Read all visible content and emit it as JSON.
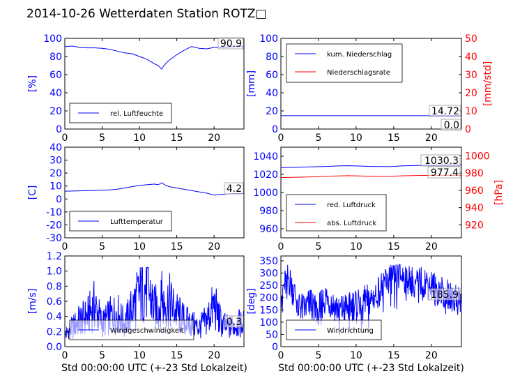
{
  "figure": {
    "title": "2014-10-26 Wetterdaten Station ROTZ□"
  },
  "colors": {
    "left_axis": "#0000ff",
    "right_axis": "#ff0000",
    "text": "#000000"
  },
  "chart_data": [
    {
      "type": "line",
      "panel": "rel. Luftfeuchte",
      "xlabel": "",
      "ylabel": "[%]",
      "xlim": [
        0,
        24
      ],
      "ylim": [
        0,
        100
      ],
      "xticks": [
        0,
        5,
        10,
        15,
        20
      ],
      "yticks": [
        0,
        20,
        40,
        60,
        80,
        100
      ],
      "legend_placement": "lower-left",
      "annotations": [
        "90.9"
      ],
      "series": [
        {
          "name": "rel. Luftfeuchte",
          "color": "#0000ff",
          "axis": "left",
          "x": [
            0,
            1,
            2,
            3,
            4,
            5,
            6,
            7,
            8,
            9,
            10,
            11,
            12,
            12.5,
            13,
            13.2,
            13.5,
            14,
            15,
            16,
            17,
            17.5,
            18,
            19,
            20,
            21,
            22,
            23,
            24
          ],
          "y": [
            91,
            91.5,
            90,
            89.5,
            89.5,
            89,
            88,
            86,
            84,
            83,
            80,
            77,
            72,
            70,
            66,
            69,
            72,
            76,
            82,
            87,
            91,
            90,
            89,
            88.5,
            90,
            90,
            90.5,
            91,
            91
          ]
        }
      ]
    },
    {
      "type": "line",
      "panel": "Niederschlag",
      "xlabel": "",
      "ylabel": "[mm]",
      "y2label": "[mm/std]",
      "xlim": [
        0,
        24
      ],
      "ylim": [
        0,
        100
      ],
      "y2lim": [
        0,
        50
      ],
      "xticks": [
        0,
        5,
        10,
        15,
        20
      ],
      "yticks": [
        0,
        20,
        40,
        60,
        80,
        100
      ],
      "y2ticks": [
        0,
        10,
        20,
        30,
        40,
        50
      ],
      "legend_placement": "upper-left",
      "annotations": [
        "14.72",
        "0.0"
      ],
      "series": [
        {
          "name": "kum. Niederschlag",
          "color": "#0000ff",
          "axis": "left",
          "x": [
            0,
            24
          ],
          "y": [
            14.72,
            14.72
          ]
        },
        {
          "name": "Niederschlagsrate",
          "color": "#ff0000",
          "axis": "right",
          "x": [
            0,
            24
          ],
          "y": [
            0,
            0
          ]
        }
      ]
    },
    {
      "type": "line",
      "panel": "Lufttemperatur",
      "xlabel": "",
      "ylabel": "[C]",
      "xlim": [
        0,
        24
      ],
      "ylim": [
        -30,
        40
      ],
      "xticks": [
        0,
        5,
        10,
        15,
        20
      ],
      "yticks": [
        -30,
        -20,
        -10,
        0,
        10,
        20,
        30,
        40
      ],
      "legend_placement": "lower-left",
      "annotations": [
        "4.2"
      ],
      "series": [
        {
          "name": "Lufttemperatur",
          "color": "#0000ff",
          "axis": "left",
          "x": [
            0,
            2,
            4,
            6,
            7,
            8,
            9,
            10,
            11,
            12,
            12.5,
            13,
            13.5,
            14,
            15,
            16,
            17,
            18,
            19,
            20,
            21,
            22,
            23,
            24
          ],
          "y": [
            6,
            6.3,
            6.6,
            7,
            7.5,
            8.5,
            9.5,
            10.5,
            11,
            11.5,
            11,
            12.5,
            10.5,
            9.5,
            8.5,
            7.5,
            6.5,
            5.5,
            4.5,
            3,
            3.5,
            4,
            4.2,
            4.2
          ]
        }
      ]
    },
    {
      "type": "line",
      "panel": "Luftdruck",
      "xlabel": "",
      "ylabel": "",
      "y2label": "[hPa]",
      "xlim": [
        0,
        24
      ],
      "ylim": [
        950,
        1050
      ],
      "y2lim": [
        905,
        1010
      ],
      "xticks": [
        0,
        5,
        10,
        15,
        20
      ],
      "yticks": [
        960,
        980,
        1000,
        1020,
        1040
      ],
      "y2ticks": [
        920,
        940,
        960,
        980,
        1000
      ],
      "legend_placement": "lower-left",
      "annotations": [
        "1030.3",
        "977.4"
      ],
      "series": [
        {
          "name": "red. Luftdruck",
          "color": "#0000ff",
          "axis": "left",
          "x": [
            0,
            2,
            4,
            6,
            8,
            9,
            10,
            12,
            14,
            15,
            16,
            18,
            20,
            22,
            24
          ],
          "y": [
            1027.5,
            1027.8,
            1028.2,
            1028.8,
            1029.4,
            1029.5,
            1029.3,
            1028.8,
            1028.5,
            1028.8,
            1029.3,
            1029.8,
            1030,
            1030.2,
            1030.3
          ]
        },
        {
          "name": "abs. Luftdruck",
          "color": "#ff0000",
          "axis": "right",
          "x": [
            0,
            2,
            4,
            6,
            8,
            9,
            10,
            12,
            14,
            15,
            16,
            18,
            20,
            22,
            24
          ],
          "y": [
            974.8,
            975.2,
            975.6,
            976.2,
            976.8,
            977,
            976.8,
            976.3,
            976.1,
            976.4,
            976.8,
            977.2,
            977.4,
            977.4,
            977.4
          ]
        }
      ]
    },
    {
      "type": "line",
      "panel": "Windgeschwindigkeit",
      "xlabel": "Std 00:00:00 UTC (+-23 Std Lokalzeit)",
      "ylabel": "[m/s]",
      "xlim": [
        0,
        24
      ],
      "ylim": [
        0,
        1.2
      ],
      "xticks": [
        0,
        5,
        10,
        15,
        20
      ],
      "yticks": [
        0.0,
        0.2,
        0.4,
        0.6,
        0.8,
        1.0,
        1.2
      ],
      "legend_placement": "lower-left",
      "annotations": [
        "0.3"
      ],
      "series": [
        {
          "name": "Windgeschwindigkeit",
          "color": "#0000ff",
          "axis": "left",
          "x": [
            0,
            1,
            2,
            3,
            4,
            5,
            6,
            7,
            8,
            9,
            10,
            11,
            12,
            13,
            14,
            15,
            16,
            17,
            18,
            19,
            20,
            21,
            22,
            23,
            24
          ],
          "y": [
            0.15,
            0.25,
            0.35,
            0.4,
            0.55,
            0.3,
            0.4,
            0.45,
            0.3,
            0.5,
            0.7,
            0.8,
            0.5,
            0.55,
            0.6,
            0.45,
            0.35,
            0.3,
            0.25,
            0.35,
            0.55,
            0.3,
            0.25,
            0.3,
            0.3
          ],
          "peak": 1.0
        }
      ]
    },
    {
      "type": "line",
      "panel": "Windrichtung",
      "xlabel": "Std 00:00:00 UTC (+-23 Std Lokalzeit)",
      "ylabel": "[deg]",
      "xlim": [
        0,
        24
      ],
      "ylim": [
        0,
        370
      ],
      "xticks": [
        0,
        5,
        10,
        15,
        20
      ],
      "yticks": [
        0,
        50,
        100,
        150,
        200,
        250,
        300,
        350
      ],
      "legend_placement": "lower-left",
      "annotations": [
        "185.9"
      ],
      "series": [
        {
          "name": "Windrichtung",
          "color": "#0000ff",
          "axis": "left",
          "x": [
            0,
            1,
            2,
            3,
            4,
            5,
            6,
            7,
            8,
            9,
            10,
            11,
            12,
            13,
            14,
            15,
            16,
            17,
            18,
            19,
            20,
            21,
            22,
            23,
            24
          ],
          "y": [
            220,
            280,
            200,
            150,
            180,
            160,
            200,
            170,
            150,
            160,
            180,
            200,
            190,
            230,
            270,
            290,
            290,
            280,
            260,
            270,
            250,
            230,
            220,
            200,
            186
          ]
        }
      ]
    }
  ]
}
